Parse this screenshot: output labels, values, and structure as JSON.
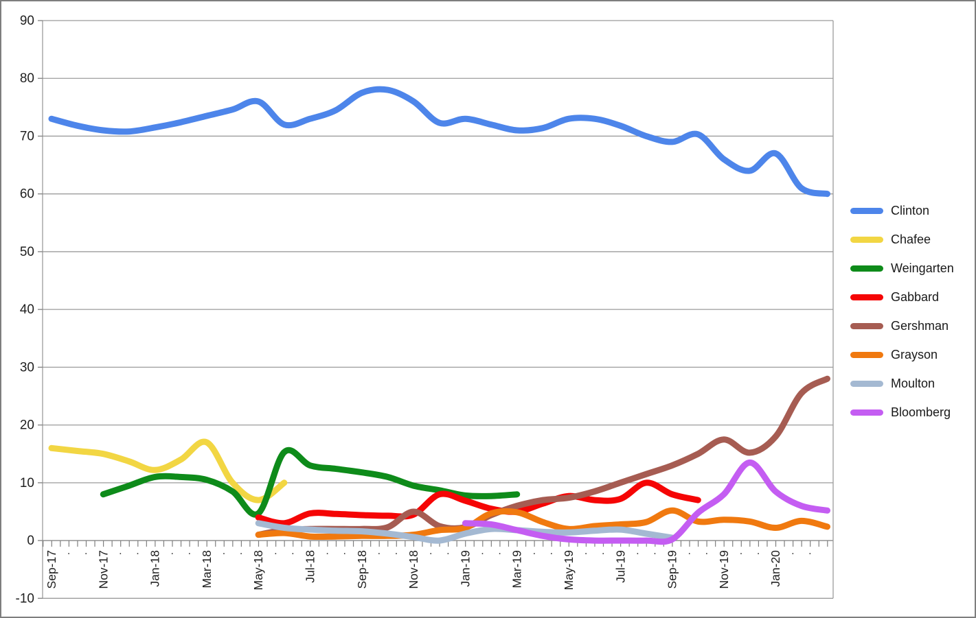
{
  "chart_data": {
    "type": "line",
    "title": "",
    "smoothed": true,
    "grid": true,
    "legend_position": "right",
    "x_axis": {
      "categories": [
        "Sep-17",
        "Oct-17",
        "Nov-17",
        "Dec-17",
        "Jan-18",
        "Feb-18",
        "Mar-18",
        "Apr-18",
        "May-18",
        "Jun-18",
        "Jul-18",
        "Aug-18",
        "Sep-18",
        "Oct-18",
        "Nov-18",
        "Dec-18",
        "Jan-19",
        "Feb-19",
        "Mar-19",
        "Apr-19",
        "May-19",
        "Jun-19",
        "Jul-19",
        "Aug-19",
        "Sep-19",
        "Oct-19",
        "Nov-19",
        "Dec-19",
        "Jan-20",
        "Feb-20",
        "Mar-20"
      ],
      "visible_labels": [
        "Sep-17",
        "Nov-17",
        "Jan-18",
        "Mar-18",
        "May-18",
        "Jul-18",
        "Sep-18",
        "Nov-18",
        "Jan-19",
        "Mar-19",
        "May-19",
        "Jul-19",
        "Sep-19",
        "Nov-19",
        "Jan-20"
      ],
      "minor_label": "."
    },
    "y_axis": {
      "min": -10,
      "max": 90,
      "step": 10,
      "labels": [
        "90",
        "80",
        "70",
        "60",
        "50",
        "40",
        "30",
        "20",
        "10",
        "0",
        "-10"
      ]
    },
    "series": [
      {
        "name": "Clinton",
        "color": "#4d85ea",
        "values": [
          73,
          71.8,
          71,
          70.8,
          71.5,
          72.4,
          73.5,
          74.6,
          76,
          72,
          73,
          74.5,
          77.5,
          78,
          76,
          72.3,
          73,
          72,
          71,
          71.4,
          73,
          73,
          71.8,
          70,
          69,
          70.3,
          66,
          64,
          67,
          61,
          60
        ]
      },
      {
        "name": "Chafee",
        "color": "#f2d643",
        "values": [
          16,
          15.5,
          15,
          13.7,
          12.2,
          14,
          17,
          10,
          7,
          10,
          null,
          null,
          null,
          null,
          null,
          null,
          null,
          null,
          null,
          null,
          null,
          null,
          null,
          null,
          null,
          null,
          null,
          null,
          null,
          null,
          null
        ]
      },
      {
        "name": "Weingarten",
        "color": "#0e8b1a",
        "values": [
          null,
          null,
          8,
          9.5,
          11,
          11,
          10.5,
          8.5,
          4.7,
          15.3,
          13,
          12.4,
          11.8,
          11,
          9.5,
          8.7,
          7.8,
          7.7,
          8,
          null,
          null,
          null,
          null,
          null,
          null,
          null,
          null,
          null,
          null,
          null,
          null
        ]
      },
      {
        "name": "Gabbard",
        "color": "#f50505",
        "values": [
          null,
          null,
          null,
          null,
          null,
          null,
          null,
          null,
          4,
          3,
          4.7,
          4.6,
          4.4,
          4.3,
          4.5,
          8,
          6.9,
          5.5,
          5,
          6.4,
          7.7,
          7,
          7.2,
          10,
          8,
          7,
          null,
          null,
          null,
          null,
          null
        ]
      },
      {
        "name": "Gershman",
        "color": "#a65c52",
        "values": [
          null,
          null,
          null,
          null,
          null,
          null,
          null,
          null,
          1,
          1.8,
          2,
          2,
          2,
          2.3,
          5,
          2.5,
          2.3,
          4.4,
          6,
          7,
          7.4,
          8.5,
          10,
          11.5,
          13,
          15,
          17.5,
          15.2,
          18,
          25.5,
          28
        ]
      },
      {
        "name": "Grayson",
        "color": "#f0790f",
        "values": [
          null,
          null,
          null,
          null,
          null,
          null,
          null,
          null,
          1,
          1.3,
          0.7,
          0.7,
          0.8,
          0.8,
          1,
          1.8,
          2.2,
          4.7,
          4.9,
          3.2,
          2,
          2.5,
          2.8,
          3.2,
          5.2,
          3.3,
          3.6,
          3.3,
          2.2,
          3.4,
          2.4
        ]
      },
      {
        "name": "Moulton",
        "color": "#a4b9d2",
        "values": [
          null,
          null,
          null,
          null,
          null,
          null,
          null,
          null,
          3,
          2.2,
          1.9,
          1.7,
          1.6,
          1.2,
          0.6,
          0,
          1.2,
          2,
          1.8,
          1.5,
          1.4,
          1.7,
          1.9,
          1.2,
          0.5,
          null,
          null,
          null,
          null,
          null,
          null
        ]
      },
      {
        "name": "Bloomberg",
        "color": "#c45df2",
        "values": [
          null,
          null,
          null,
          null,
          null,
          null,
          null,
          null,
          null,
          null,
          null,
          null,
          null,
          null,
          null,
          null,
          3,
          2.8,
          1.8,
          0.8,
          0.2,
          0,
          0,
          0,
          0.2,
          4.8,
          8,
          13.5,
          8.5,
          6,
          5.2
        ]
      }
    ],
    "colors": {
      "gridline": "#9b9b9b",
      "axis": "#9b9b9b",
      "tick": "#7f7f7f",
      "label_text": "#1f1f1f"
    }
  }
}
